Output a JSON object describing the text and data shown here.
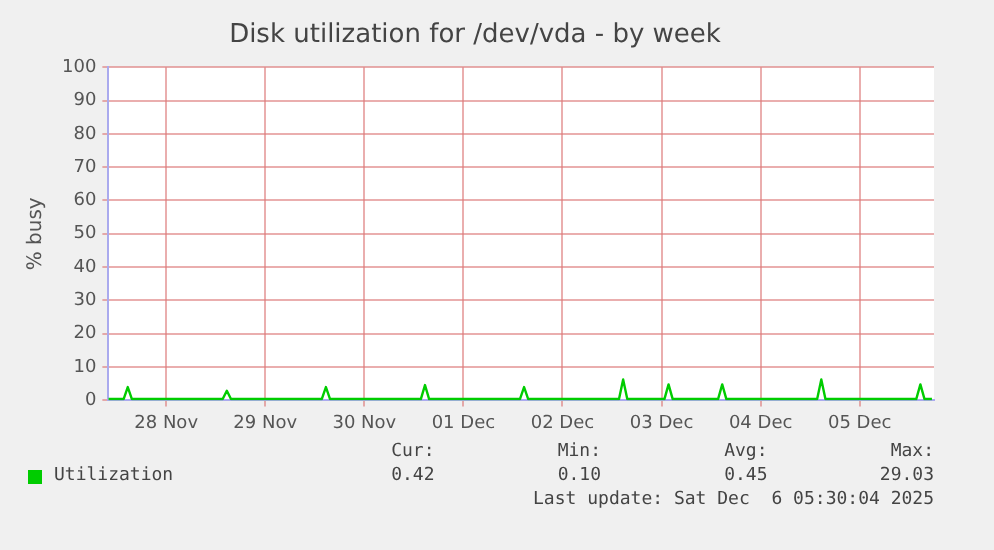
{
  "chart_data": {
    "type": "line",
    "title": "Disk utilization for /dev/vda - by week",
    "ylabel": "% busy",
    "x": [
      "2025-11-27T22:00",
      "2025-11-28T01:42",
      "2025-11-28T02:42",
      "2025-11-28T03:42",
      "2025-11-29T01:42",
      "2025-11-29T02:42",
      "2025-11-29T03:42",
      "2025-11-30T01:42",
      "2025-11-30T02:42",
      "2025-11-30T03:42",
      "2025-12-01T01:42",
      "2025-12-01T02:42",
      "2025-12-01T03:42",
      "2025-12-02T01:42",
      "2025-12-02T02:42",
      "2025-12-02T03:42",
      "2025-12-03T01:42",
      "2025-12-03T02:42",
      "2025-12-03T03:42",
      "2025-12-03T12:42",
      "2025-12-03T13:42",
      "2025-12-03T14:42",
      "2025-12-04T01:42",
      "2025-12-04T02:42",
      "2025-12-04T03:42",
      "2025-12-05T01:42",
      "2025-12-05T02:42",
      "2025-12-05T03:42",
      "2025-12-06T01:42",
      "2025-12-06T02:42",
      "2025-12-06T03:42",
      "2025-12-06T05:30"
    ],
    "series": [
      {
        "name": "Utilization",
        "color": "#00cc00",
        "values": [
          0.4,
          0.4,
          4,
          0.4,
          0.4,
          2.9,
          0.4,
          0.4,
          4,
          0.4,
          0.4,
          4.6,
          0.4,
          0.4,
          4,
          0.4,
          0.4,
          6.3,
          0.4,
          0.4,
          4.8,
          0.4,
          0.4,
          4.8,
          0.4,
          0.4,
          6.3,
          0.4,
          0.4,
          4.8,
          0.4,
          0.4
        ]
      }
    ],
    "xlim": [
      "2025-11-27T22:00",
      "2025-12-06T06:00"
    ],
    "xticks": [
      {
        "value": "2025-11-28T12:00",
        "label": "28 Nov"
      },
      {
        "value": "2025-11-29T12:00",
        "label": "29 Nov"
      },
      {
        "value": "2025-11-30T12:00",
        "label": "30 Nov"
      },
      {
        "value": "2025-12-01T12:00",
        "label": "01 Dec"
      },
      {
        "value": "2025-12-02T12:00",
        "label": "02 Dec"
      },
      {
        "value": "2025-12-03T12:00",
        "label": "03 Dec"
      },
      {
        "value": "2025-12-04T12:00",
        "label": "04 Dec"
      },
      {
        "value": "2025-12-05T12:00",
        "label": "05 Dec"
      }
    ],
    "ylim": [
      0,
      100
    ],
    "yticks": [
      0,
      10,
      20,
      30,
      40,
      50,
      60,
      70,
      80,
      90,
      100
    ],
    "grid": true,
    "legend": "bottom",
    "marker": "none",
    "line_style": "solid",
    "annotations": [
      "Cur:",
      "Min:",
      "Avg:",
      "Max:",
      "0.42",
      "0.10",
      "0.45",
      "29.03",
      "Last update: Sat Dec  6 05:30:04 2025"
    ]
  }
}
